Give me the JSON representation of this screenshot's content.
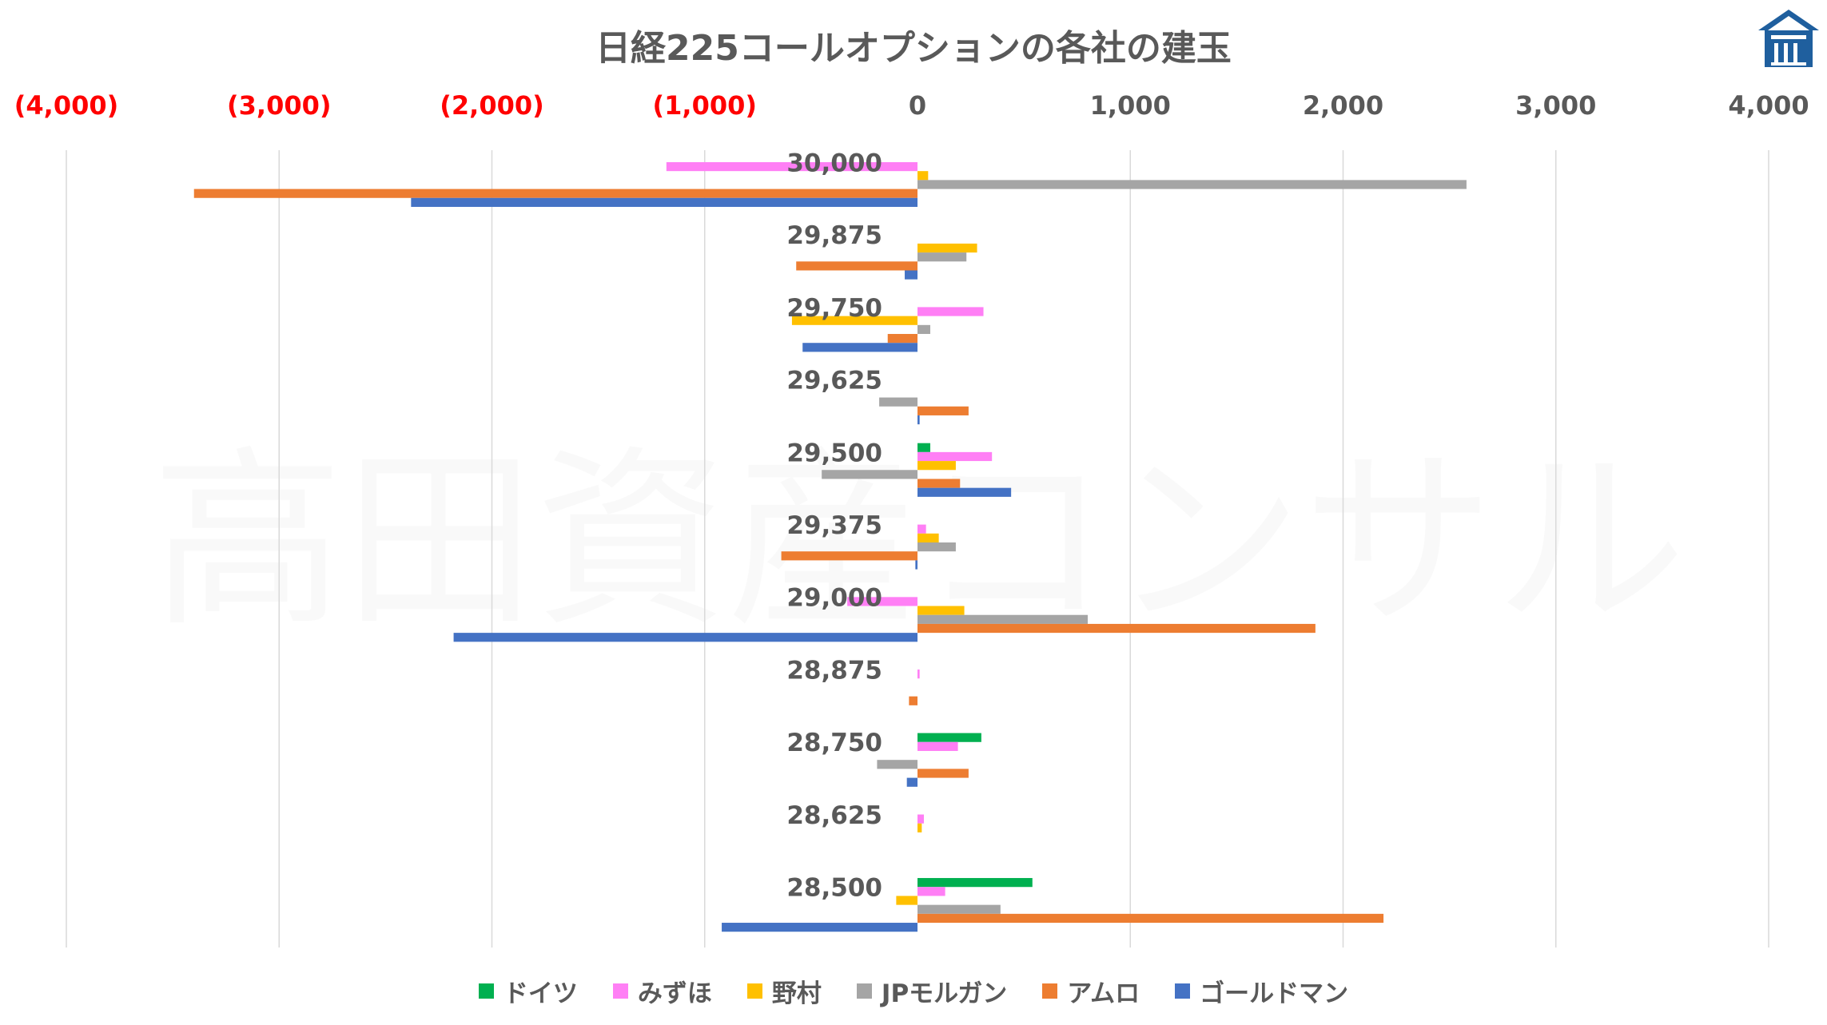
{
  "chart_data": {
    "type": "bar",
    "orientation": "horizontal",
    "title": "日経225コールオプションの各社の建玉",
    "watermark": "高田資産コンサル",
    "xlim": [
      -4000,
      4000
    ],
    "x_ticks": [
      -4000,
      -3000,
      -2000,
      -1000,
      0,
      1000,
      2000,
      3000,
      4000
    ],
    "x_tick_labels": [
      "(4,000)",
      "(3,000)",
      "(2,000)",
      "(1,000)",
      "0",
      "1,000",
      "2,000",
      "3,000",
      "4,000"
    ],
    "negative_tick_color": "#ff0000",
    "grid": "vertical",
    "legend_position": "bottom",
    "categories": [
      "30,000",
      "29,875",
      "29,750",
      "29,625",
      "29,500",
      "29,375",
      "29,000",
      "28,875",
      "28,750",
      "28,625",
      "28,500"
    ],
    "series": [
      {
        "name": "ドイツ",
        "color": "#00b050",
        "values": [
          0,
          0,
          0,
          0,
          60,
          0,
          0,
          0,
          300,
          0,
          540
        ]
      },
      {
        "name": "みずほ",
        "color": "#ff7ff5",
        "values": [
          -1180,
          0,
          310,
          0,
          350,
          40,
          -330,
          10,
          190,
          30,
          130
        ]
      },
      {
        "name": "野村",
        "color": "#ffc000",
        "values": [
          50,
          280,
          -590,
          0,
          180,
          100,
          220,
          0,
          0,
          20,
          -100
        ]
      },
      {
        "name": "JPモルガン",
        "color": "#a5a5a5",
        "values": [
          2580,
          230,
          60,
          -180,
          -450,
          180,
          800,
          0,
          -190,
          0,
          390
        ]
      },
      {
        "name": "アムロ",
        "color": "#ed7d31",
        "values": [
          -3400,
          -570,
          -140,
          240,
          200,
          -640,
          1870,
          -40,
          240,
          0,
          2190
        ]
      },
      {
        "name": "ゴールドマン",
        "color": "#4472c4",
        "values": [
          -2380,
          -60,
          -540,
          10,
          440,
          -10,
          -2180,
          0,
          -50,
          0,
          -920
        ]
      }
    ]
  },
  "logo_icon": "takata-house-logo-icon"
}
